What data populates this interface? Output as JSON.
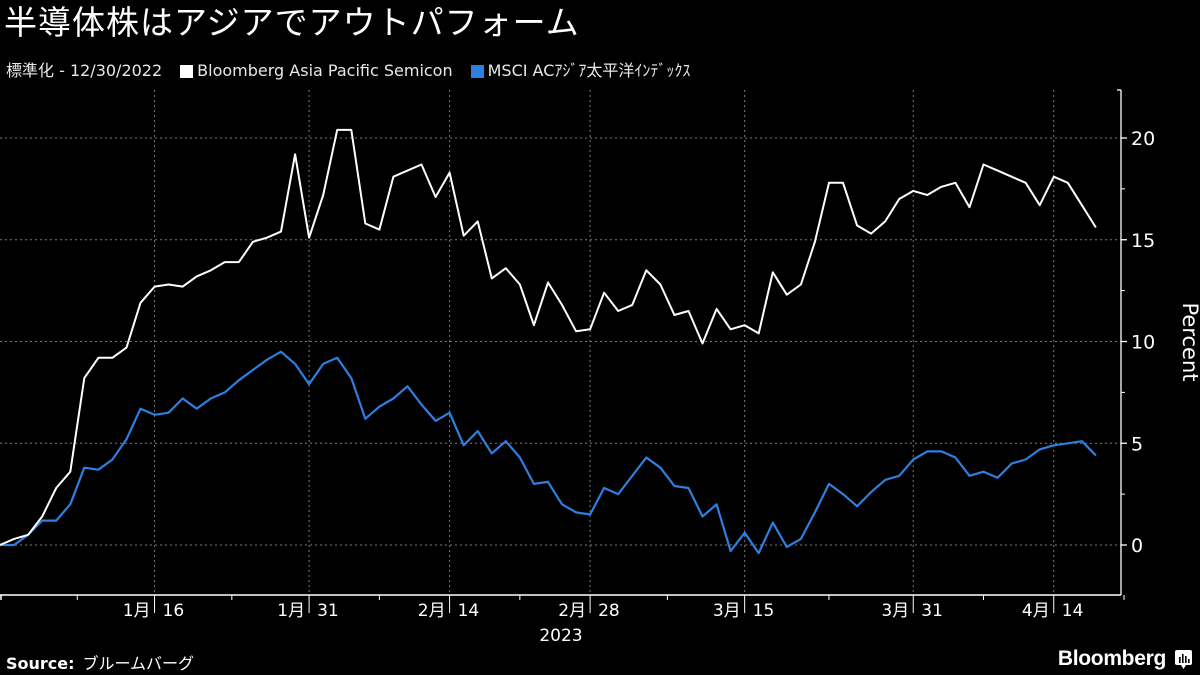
{
  "header": {
    "title": "半導体株はアジアでアウトパフォーム",
    "subtitle": "標準化 - 12/30/2022",
    "legend": [
      {
        "label": "Bloomberg Asia Pacific Semicon",
        "color": "#ffffff"
      },
      {
        "label": "MSCI ACｱｼﾞｱ太平洋ｲﾝﾃﾞｯｸｽ",
        "color": "#2d7fe0"
      }
    ]
  },
  "footer": {
    "source_label": "Source:",
    "source_value": "ブルームバーグ",
    "brand": "Bloomberg"
  },
  "chart_data": {
    "type": "line",
    "title": "半導体株はアジアでアウトパフォーム",
    "subtitle": "標準化 - 12/30/2022",
    "xlabel": "2023",
    "ylabel": "Percent",
    "ylim": [
      -2.5,
      22.5
    ],
    "yticks": [
      0,
      5,
      10,
      15,
      20
    ],
    "x_tick_labels": [
      {
        "label": "1月 16",
        "index": 11
      },
      {
        "label": "1月 31",
        "index": 22
      },
      {
        "label": "2月 14",
        "index": 32
      },
      {
        "label": "2月 28",
        "index": 42
      },
      {
        "label": "3月 15",
        "index": 53
      },
      {
        "label": "3月 31",
        "index": 65
      },
      {
        "label": "4月 14",
        "index": 75
      }
    ],
    "x_year_label": "2023",
    "grid": true,
    "legend_position": "top",
    "x_start": "12/30/2022",
    "series": [
      {
        "name": "Bloomberg Asia Pacific Semicon",
        "color": "#ffffff",
        "values": [
          0,
          0.3,
          0.5,
          1.4,
          2.8,
          3.6,
          8.2,
          9.2,
          9.2,
          9.7,
          11.9,
          12.7,
          12.8,
          12.7,
          13.2,
          13.5,
          13.9,
          13.9,
          14.9,
          15.1,
          15.4,
          19.2,
          15.1,
          17.2,
          20.4,
          20.4,
          15.8,
          15.5,
          18.1,
          18.4,
          18.7,
          17.1,
          18.3,
          15.2,
          15.9,
          13.1,
          13.6,
          12.8,
          10.8,
          12.9,
          11.8,
          10.5,
          10.6,
          12.4,
          11.5,
          11.8,
          13.5,
          12.8,
          11.3,
          11.5,
          9.9,
          11.6,
          10.6,
          10.8,
          10.4,
          13.4,
          12.3,
          12.8,
          14.9,
          17.8,
          17.8,
          15.7,
          15.3,
          15.9,
          17.0,
          17.4,
          17.2,
          17.6,
          17.8,
          16.6,
          18.7,
          18.4,
          18.1,
          17.8,
          16.7,
          18.1,
          17.8,
          16.7,
          15.6
        ]
      },
      {
        "name": "MSCI ACｱｼﾞｱ太平洋ｲﾝﾃﾞｯｸｽ",
        "color": "#2d7fe0",
        "values": [
          0,
          0,
          0.5,
          1.2,
          1.2,
          2.0,
          3.8,
          3.7,
          4.2,
          5.2,
          6.7,
          6.4,
          6.5,
          7.2,
          6.7,
          7.2,
          7.5,
          8.1,
          8.6,
          9.1,
          9.5,
          8.9,
          7.9,
          8.9,
          9.2,
          8.2,
          6.2,
          6.8,
          7.2,
          7.8,
          6.9,
          6.1,
          6.5,
          4.9,
          5.6,
          4.5,
          5.1,
          4.3,
          3.0,
          3.1,
          2.0,
          1.6,
          1.5,
          2.8,
          2.5,
          3.4,
          4.3,
          3.8,
          2.9,
          2.8,
          1.4,
          2.0,
          -0.3,
          0.6,
          -0.4,
          1.1,
          -0.1,
          0.3,
          1.6,
          3.0,
          2.5,
          1.9,
          2.6,
          3.2,
          3.4,
          4.2,
          4.6,
          4.6,
          4.3,
          3.4,
          3.6,
          3.3,
          4.0,
          4.2,
          4.7,
          4.9,
          5.0,
          5.1,
          4.4
        ]
      }
    ]
  }
}
